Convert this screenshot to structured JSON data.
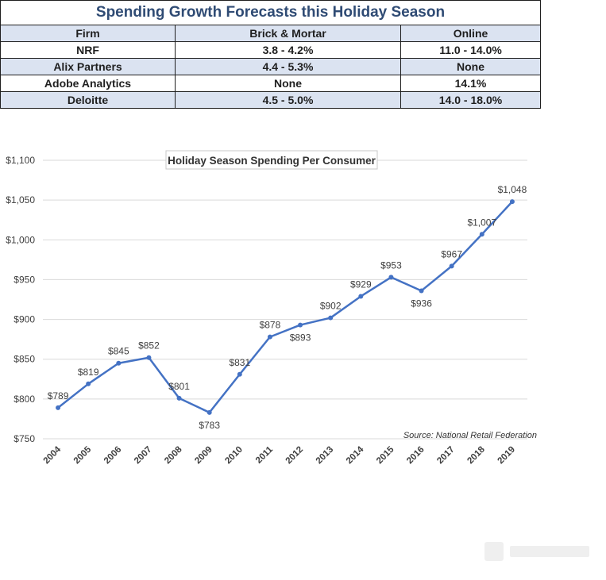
{
  "table": {
    "title": "Spending Growth Forecasts this Holiday Season",
    "headers": [
      "Firm",
      "Brick & Mortar",
      "Online"
    ],
    "rows": [
      [
        "NRF",
        "3.8 - 4.2%",
        "11.0 - 14.0%"
      ],
      [
        "Alix Partners",
        "4.4 - 5.3%",
        "None"
      ],
      [
        "Adobe Analytics",
        "None",
        "14.1%"
      ],
      [
        "Deloitte",
        "4.5 - 5.0%",
        "14.0 - 18.0%"
      ]
    ]
  },
  "chart_data": {
    "type": "line",
    "title": "Holiday Season Spending Per Consumer",
    "source": "Source: National Retail Federation",
    "x": [
      "2004",
      "2005",
      "2006",
      "2007",
      "2008",
      "2009",
      "2010",
      "2011",
      "2012",
      "2013",
      "2014",
      "2015",
      "2016",
      "2017",
      "2018",
      "2019"
    ],
    "series": [
      {
        "values": [
          789,
          819,
          845,
          852,
          801,
          783,
          831,
          878,
          893,
          902,
          929,
          953,
          936,
          967,
          1007,
          1048
        ],
        "labels": [
          "$789",
          "$819",
          "$845",
          "$852",
          "$801",
          "$783",
          "$831",
          "$878",
          "$893",
          "$902",
          "$929",
          "$953",
          "$936",
          "$967",
          "$1,007",
          "$1,048"
        ],
        "label_side": [
          "above",
          "above",
          "above",
          "above",
          "above",
          "below",
          "above",
          "above",
          "below",
          "above",
          "above",
          "above",
          "below",
          "above",
          "above",
          "above"
        ],
        "color": "#4472c4"
      }
    ],
    "ylim": [
      750,
      1100
    ],
    "yticks": [
      750,
      800,
      850,
      900,
      950,
      1000,
      1050,
      1100
    ],
    "ytick_labels": [
      "$750",
      "$800",
      "$850",
      "$900",
      "$950",
      "$1,000",
      "$1,050",
      "$1,100"
    ],
    "grid": true,
    "gridline_color": "#d9d9d9"
  }
}
